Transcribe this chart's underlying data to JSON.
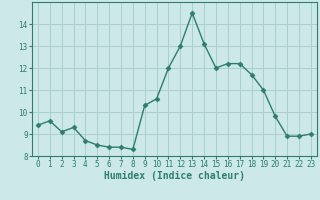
{
  "x": [
    0,
    1,
    2,
    3,
    4,
    5,
    6,
    7,
    8,
    9,
    10,
    11,
    12,
    13,
    14,
    15,
    16,
    17,
    18,
    19,
    20,
    21,
    22,
    23
  ],
  "y": [
    9.4,
    9.6,
    9.1,
    9.3,
    8.7,
    8.5,
    8.4,
    8.4,
    8.3,
    10.3,
    10.6,
    12.0,
    13.0,
    14.5,
    13.1,
    12.0,
    12.2,
    12.2,
    11.7,
    11.0,
    9.8,
    8.9,
    8.9,
    9.0
  ],
  "line_color": "#2e7d6e",
  "marker": "D",
  "marker_size": 2.5,
  "bg_color": "#cce8e8",
  "grid_color": "#aacece",
  "xlabel": "Humidex (Indice chaleur)",
  "ylim": [
    8,
    15
  ],
  "xlim": [
    -0.5,
    23.5
  ],
  "yticks": [
    8,
    9,
    10,
    11,
    12,
    13,
    14
  ],
  "xticks": [
    0,
    1,
    2,
    3,
    4,
    5,
    6,
    7,
    8,
    9,
    10,
    11,
    12,
    13,
    14,
    15,
    16,
    17,
    18,
    19,
    20,
    21,
    22,
    23
  ],
  "tick_fontsize": 5.5,
  "label_fontsize": 7.0
}
